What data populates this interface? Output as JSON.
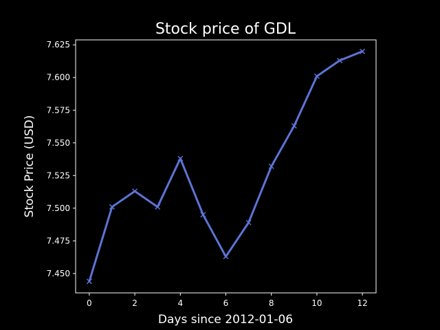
{
  "chart_data": {
    "type": "line",
    "title": "Stock price of GDL",
    "xlabel": "Days since 2012-01-06",
    "ylabel": "Stock Price (USD)",
    "x": [
      0,
      1,
      2,
      3,
      4,
      5,
      6,
      7,
      8,
      9,
      10,
      11,
      12
    ],
    "series": [
      {
        "values": [
          7.444,
          7.501,
          7.513,
          7.501,
          7.538,
          7.495,
          7.463,
          7.489,
          7.532,
          7.563,
          7.601,
          7.613,
          7.62
        ],
        "color": "#5c74d6",
        "marker": "x"
      }
    ],
    "xlim": [
      -0.6,
      12.6
    ],
    "ylim": [
      7.4352,
      7.6288
    ],
    "xticks": [
      0,
      2,
      4,
      6,
      8,
      10,
      12
    ],
    "xtick_labels": [
      "0",
      "2",
      "4",
      "6",
      "8",
      "10",
      "12"
    ],
    "yticks": [
      7.45,
      7.475,
      7.5,
      7.525,
      7.55,
      7.575,
      7.6,
      7.625
    ],
    "ytick_labels": [
      "7.450",
      "7.475",
      "7.500",
      "7.525",
      "7.550",
      "7.575",
      "7.600",
      "7.625"
    ],
    "grid": false,
    "background": "#000000",
    "foreground": "#ffffff"
  }
}
